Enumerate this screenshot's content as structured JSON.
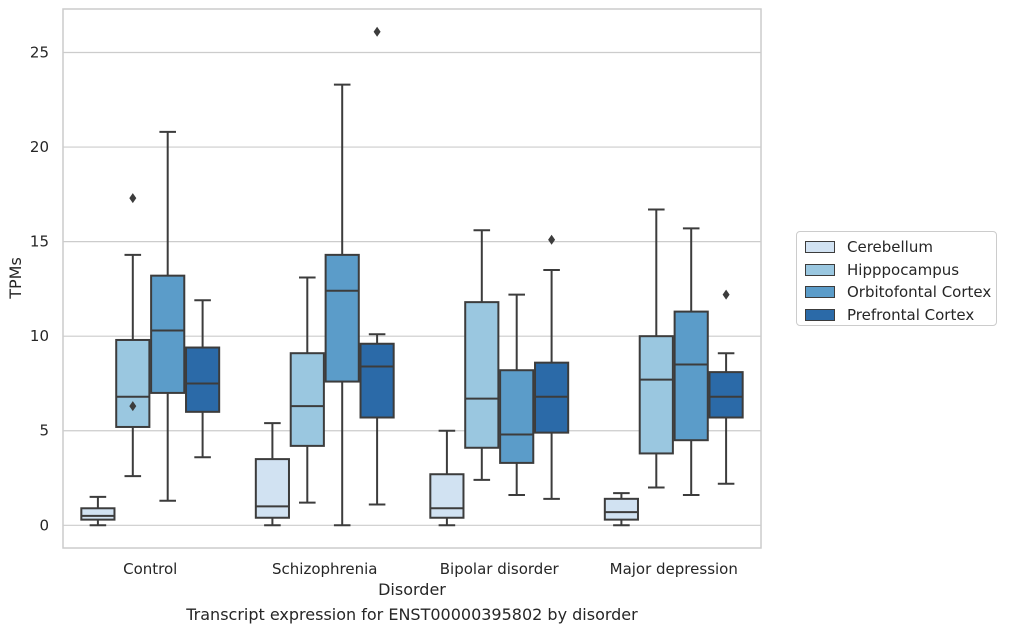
{
  "chart_data": {
    "type": "box",
    "title": "",
    "caption": "Transcript expression for ENST00000395802 by disorder",
    "xlabel": "Disorder",
    "ylabel": "TPMs",
    "ylim": [
      -1.2,
      27.3
    ],
    "yticks": [
      0,
      5,
      10,
      15,
      20,
      25
    ],
    "grid": true,
    "legend_position": "right",
    "categories": [
      "Control",
      "Schizophrenia",
      "Bipolar disorder",
      "Major depression"
    ],
    "series": [
      {
        "name": "Cerebellum",
        "color": "#d1e2f2",
        "boxes": [
          {
            "whisker_low": 0.0,
            "q1": 0.3,
            "median": 0.5,
            "q3": 0.9,
            "whisker_high": 1.5,
            "outliers": []
          },
          {
            "whisker_low": 0.0,
            "q1": 0.4,
            "median": 1.0,
            "q3": 3.5,
            "whisker_high": 5.4,
            "outliers": []
          },
          {
            "whisker_low": 0.0,
            "q1": 0.4,
            "median": 0.9,
            "q3": 2.7,
            "whisker_high": 5.0,
            "outliers": []
          },
          {
            "whisker_low": 0.0,
            "q1": 0.3,
            "median": 0.7,
            "q3": 1.4,
            "whisker_high": 1.7,
            "outliers": []
          }
        ]
      },
      {
        "name": "Hipppocampus",
        "color": "#9ac7e0",
        "boxes": [
          {
            "whisker_low": 2.6,
            "q1": 5.2,
            "median": 6.8,
            "q3": 9.8,
            "whisker_high": 14.3,
            "outliers": [
              6.3,
              17.3
            ]
          },
          {
            "whisker_low": 1.2,
            "q1": 4.2,
            "median": 6.3,
            "q3": 9.1,
            "whisker_high": 13.1,
            "outliers": []
          },
          {
            "whisker_low": 2.4,
            "q1": 4.1,
            "median": 6.7,
            "q3": 11.8,
            "whisker_high": 15.6,
            "outliers": []
          },
          {
            "whisker_low": 2.0,
            "q1": 3.8,
            "median": 7.7,
            "q3": 10.0,
            "whisker_high": 16.7,
            "outliers": []
          }
        ]
      },
      {
        "name": "Orbitofontal Cortex",
        "color": "#5b9cc9",
        "boxes": [
          {
            "whisker_low": 1.3,
            "q1": 7.0,
            "median": 10.3,
            "q3": 13.2,
            "whisker_high": 20.8,
            "outliers": []
          },
          {
            "whisker_low": 0.0,
            "q1": 7.6,
            "median": 12.4,
            "q3": 14.3,
            "whisker_high": 23.3,
            "outliers": []
          },
          {
            "whisker_low": 1.6,
            "q1": 3.3,
            "median": 4.8,
            "q3": 8.2,
            "whisker_high": 12.2,
            "outliers": []
          },
          {
            "whisker_low": 1.6,
            "q1": 4.5,
            "median": 8.5,
            "q3": 11.3,
            "whisker_high": 15.7,
            "outliers": []
          }
        ]
      },
      {
        "name": "Prefrontal Cortex",
        "color": "#2b6aa8",
        "boxes": [
          {
            "whisker_low": 3.6,
            "q1": 6.0,
            "median": 7.5,
            "q3": 9.4,
            "whisker_high": 11.9,
            "outliers": []
          },
          {
            "whisker_low": 1.1,
            "q1": 5.7,
            "median": 8.4,
            "q3": 9.6,
            "whisker_high": 10.1,
            "outliers": [
              26.1
            ]
          },
          {
            "whisker_low": 1.4,
            "q1": 4.9,
            "median": 6.8,
            "q3": 8.6,
            "whisker_high": 13.5,
            "outliers": [
              15.1
            ]
          },
          {
            "whisker_low": 2.2,
            "q1": 5.7,
            "median": 6.8,
            "q3": 8.1,
            "whisker_high": 9.1,
            "outliers": [
              12.2
            ]
          }
        ]
      }
    ]
  }
}
